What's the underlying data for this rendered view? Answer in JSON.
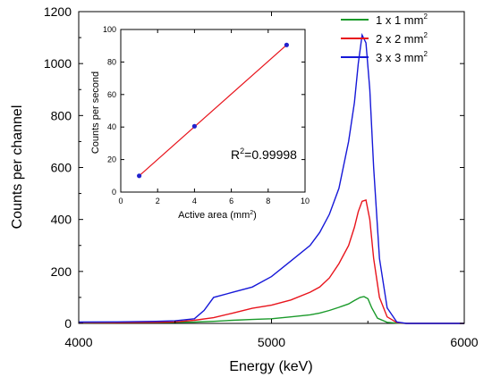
{
  "chart_data": [
    {
      "type": "line",
      "xlabel": "Energy (keV)",
      "ylabel": "Counts per channel",
      "xlim": [
        4000,
        6000
      ],
      "ylim": [
        0,
        1200
      ],
      "xticks": [
        "4000",
        "5000",
        "6000"
      ],
      "yticks": [
        "0",
        "200",
        "400",
        "600",
        "800",
        "1000",
        "1200"
      ],
      "grid": false,
      "legend_position": "top-right",
      "series": [
        {
          "name": "1 x 1 mm",
          "name_superscript": "2",
          "color": "#1a9a2a",
          "x": [
            4000,
            4200,
            4400,
            4600,
            4700,
            4800,
            4900,
            5000,
            5100,
            5200,
            5250,
            5300,
            5350,
            5400,
            5430,
            5460,
            5480,
            5500,
            5520,
            5550,
            5600,
            5650,
            5700,
            6000
          ],
          "y": [
            2,
            3,
            3,
            5,
            8,
            12,
            15,
            18,
            25,
            33,
            40,
            50,
            62,
            75,
            88,
            100,
            103,
            95,
            60,
            20,
            4,
            1,
            0,
            0
          ]
        },
        {
          "name": "2 x 2 mm",
          "name_superscript": "2",
          "color": "#e8141c",
          "x": [
            4000,
            4200,
            4400,
            4500,
            4600,
            4700,
            4800,
            4900,
            5000,
            5100,
            5200,
            5250,
            5300,
            5350,
            5400,
            5430,
            5450,
            5470,
            5490,
            5510,
            5530,
            5560,
            5600,
            5650,
            5700,
            6000
          ],
          "y": [
            3,
            3,
            4,
            6,
            12,
            22,
            40,
            58,
            70,
            90,
            120,
            140,
            175,
            230,
            300,
            370,
            430,
            470,
            475,
            400,
            250,
            100,
            25,
            3,
            0,
            0
          ]
        },
        {
          "name": "3 x 3 mm",
          "name_superscript": "2",
          "color": "#1618d8",
          "x": [
            4000,
            4200,
            4400,
            4500,
            4600,
            4650,
            4700,
            4800,
            4900,
            5000,
            5100,
            5200,
            5250,
            5300,
            5350,
            5400,
            5430,
            5450,
            5470,
            5490,
            5510,
            5530,
            5560,
            5600,
            5650,
            5700,
            6000
          ],
          "y": [
            5,
            6,
            8,
            10,
            18,
            50,
            100,
            120,
            140,
            180,
            240,
            300,
            350,
            420,
            520,
            700,
            850,
            1000,
            1110,
            1080,
            900,
            600,
            250,
            60,
            5,
            0,
            0
          ]
        }
      ]
    },
    {
      "type": "scatter",
      "xlabel": "Active area (mm",
      "xlabel_superscript": "2",
      "xlabel_suffix": ")",
      "ylabel": "Counts per second",
      "xlim": [
        0,
        10
      ],
      "ylim": [
        0,
        100
      ],
      "xticks": [
        "0",
        "2",
        "4",
        "6",
        "8",
        "10"
      ],
      "yticks": [
        "0",
        "20",
        "40",
        "60",
        "80",
        "100"
      ],
      "points": {
        "color": "#2222cc",
        "x": [
          1,
          4,
          9
        ],
        "y": [
          10,
          40.5,
          90.5
        ]
      },
      "fit_line": {
        "color": "#e8141c",
        "x": [
          1,
          9
        ],
        "y": [
          10,
          90.5
        ]
      },
      "annotation": {
        "prefix": "R",
        "superscript": "2",
        "suffix": "=0.99998"
      }
    }
  ]
}
